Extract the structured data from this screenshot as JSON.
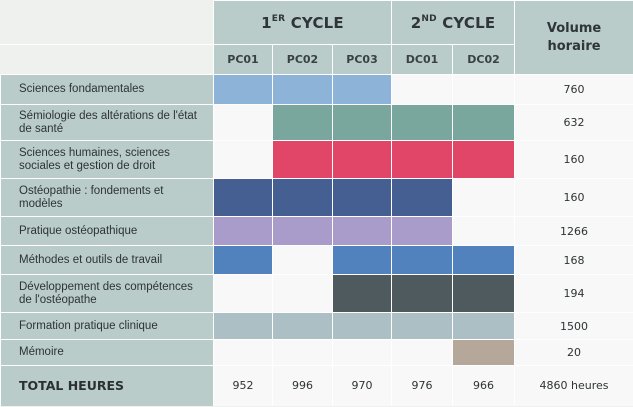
{
  "header": {
    "cycle1": {
      "main": "1",
      "sup": "ER",
      "rest": " CYCLE"
    },
    "cycle2": {
      "main": "2",
      "sup": "ND",
      "rest": " CYCLE"
    },
    "volume_line1": "Volume",
    "volume_line2": "horaire",
    "periods": [
      "PC01",
      "PC02",
      "PC03",
      "DC01",
      "DC02"
    ]
  },
  "rows": [
    {
      "label": "Sciences fondamentales",
      "color": "#8db3d9",
      "fill": [
        true,
        true,
        true,
        false,
        false
      ],
      "hours": "760"
    },
    {
      "label": "Sémiologie des altérations de l'état de santé",
      "color": "#7aa79d",
      "fill": [
        false,
        true,
        true,
        true,
        true
      ],
      "hours": "632"
    },
    {
      "label": "Sciences humaines, sciences sociales et gestion de droit",
      "color": "#e14568",
      "fill": [
        false,
        true,
        true,
        true,
        true
      ],
      "hours": "160"
    },
    {
      "label": "Ostéopathie : fondements et modèles",
      "color": "#465f92",
      "fill": [
        true,
        true,
        true,
        true,
        false
      ],
      "hours": "160"
    },
    {
      "label": "Pratique ostéopathique",
      "color": "#a99ccb",
      "fill": [
        true,
        true,
        true,
        true,
        false
      ],
      "hours": "1266"
    },
    {
      "label": "Méthodes et outils de travail",
      "color": "#5182be",
      "fill": [
        true,
        false,
        true,
        true,
        true
      ],
      "hours": "168"
    },
    {
      "label": "Développement des compétences de l'ostéopathe",
      "color": "#4f5a5f",
      "fill": [
        false,
        false,
        true,
        true,
        true
      ],
      "hours": "194"
    },
    {
      "label": "Formation pratique clinique",
      "color": "#acbfc4",
      "fill": [
        true,
        true,
        true,
        true,
        true
      ],
      "hours": "1500"
    },
    {
      "label": "Mémoire",
      "color": "#b5a89b",
      "fill": [
        false,
        false,
        false,
        false,
        true
      ],
      "hours": "20"
    }
  ],
  "totals": {
    "label": "TOTAL HEURES",
    "values": [
      "952",
      "996",
      "970",
      "976",
      "966"
    ],
    "overall": "4860 heures"
  }
}
